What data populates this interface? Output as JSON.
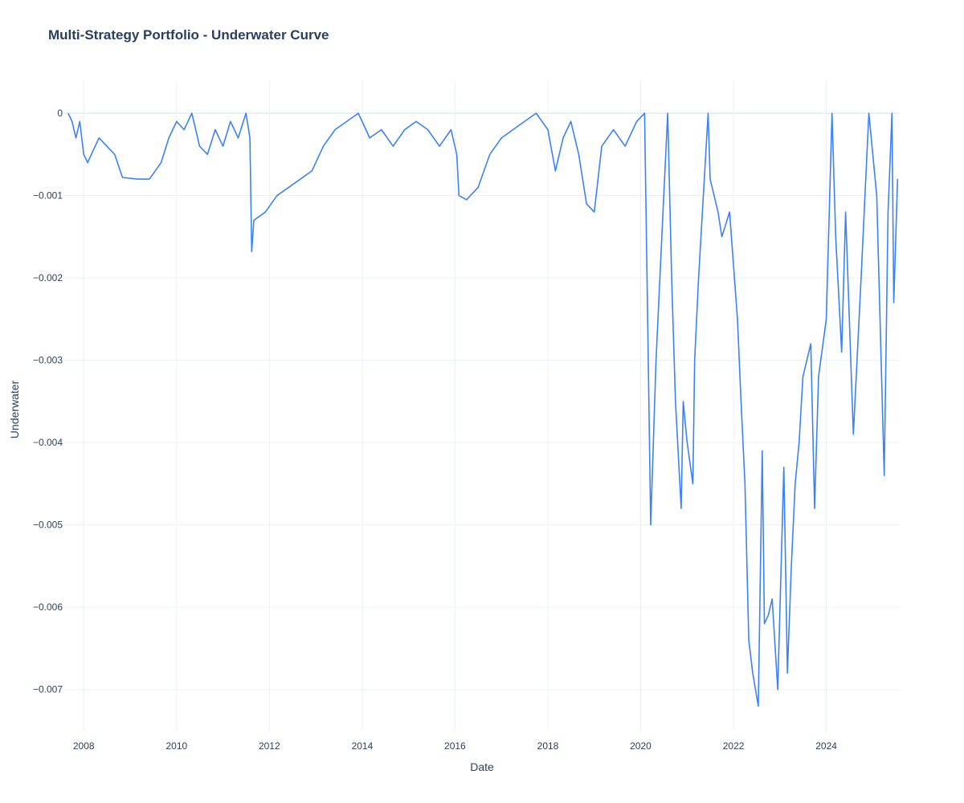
{
  "chart_data": {
    "type": "line",
    "title": "Multi-Strategy Portfolio - Underwater Curve",
    "xlabel": "Date",
    "ylabel": "Underwater",
    "grid": true,
    "xlim": [
      "2007-08-01",
      "2025-08-01"
    ],
    "ylim": [
      -0.0075,
      0.0004
    ],
    "x_ticks": [
      "2008",
      "2010",
      "2012",
      "2014",
      "2016",
      "2018",
      "2020",
      "2022",
      "2024"
    ],
    "y_ticks": [
      {
        "value": 0,
        "label": "0"
      },
      {
        "value": -0.001,
        "label": "−0.001"
      },
      {
        "value": -0.002,
        "label": "−0.002"
      },
      {
        "value": -0.003,
        "label": "−0.003"
      },
      {
        "value": -0.004,
        "label": "−0.004"
      },
      {
        "value": -0.005,
        "label": "−0.005"
      },
      {
        "value": -0.006,
        "label": "−0.006"
      },
      {
        "value": -0.007,
        "label": "−0.007"
      }
    ],
    "series": [
      {
        "color": "#3b82f6",
        "points": [
          [
            "2007-09-01",
            0
          ],
          [
            "2007-10-01",
            -0.0001
          ],
          [
            "2007-11-01",
            -0.0003
          ],
          [
            "2007-12-01",
            -0.0001
          ],
          [
            "2008-01-01",
            -0.0005
          ],
          [
            "2008-02-01",
            -0.0006
          ],
          [
            "2008-03-01",
            -0.0005
          ],
          [
            "2008-05-01",
            -0.0003
          ],
          [
            "2008-07-01",
            -0.0004
          ],
          [
            "2008-09-01",
            -0.0005
          ],
          [
            "2008-11-01",
            -0.00078
          ],
          [
            "2009-03-01",
            -0.0008
          ],
          [
            "2009-06-01",
            -0.0008
          ],
          [
            "2009-09-01",
            -0.0006
          ],
          [
            "2009-11-01",
            -0.0003
          ],
          [
            "2010-01-01",
            -0.0001
          ],
          [
            "2010-03-01",
            -0.0002
          ],
          [
            "2010-05-01",
            0
          ],
          [
            "2010-07-01",
            -0.0004
          ],
          [
            "2010-09-01",
            -0.0005
          ],
          [
            "2010-11-01",
            -0.0002
          ],
          [
            "2011-01-01",
            -0.0004
          ],
          [
            "2011-03-01",
            -0.0001
          ],
          [
            "2011-05-01",
            -0.0003
          ],
          [
            "2011-07-01",
            0
          ],
          [
            "2011-08-01",
            -0.0003
          ],
          [
            "2011-08-15",
            -0.00168
          ],
          [
            "2011-09-01",
            -0.0013
          ],
          [
            "2011-12-01",
            -0.0012
          ],
          [
            "2012-03-01",
            -0.001
          ],
          [
            "2012-06-01",
            -0.0009
          ],
          [
            "2012-09-01",
            -0.0008
          ],
          [
            "2012-12-01",
            -0.0007
          ],
          [
            "2013-03-01",
            -0.0004
          ],
          [
            "2013-06-01",
            -0.0002
          ],
          [
            "2013-09-01",
            -0.0001
          ],
          [
            "2013-12-01",
            0
          ],
          [
            "2014-03-01",
            -0.0003
          ],
          [
            "2014-06-01",
            -0.0002
          ],
          [
            "2014-09-01",
            -0.0004
          ],
          [
            "2014-12-01",
            -0.0002
          ],
          [
            "2015-03-01",
            -0.0001
          ],
          [
            "2015-06-01",
            -0.0002
          ],
          [
            "2015-09-01",
            -0.0004
          ],
          [
            "2015-12-01",
            -0.0002
          ],
          [
            "2016-01-15",
            -0.0005
          ],
          [
            "2016-02-01",
            -0.001
          ],
          [
            "2016-04-01",
            -0.00105
          ],
          [
            "2016-07-01",
            -0.0009
          ],
          [
            "2016-10-01",
            -0.0005
          ],
          [
            "2017-01-01",
            -0.0003
          ],
          [
            "2017-04-01",
            -0.0002
          ],
          [
            "2017-07-01",
            -0.0001
          ],
          [
            "2017-10-01",
            0
          ],
          [
            "2018-01-01",
            -0.0002
          ],
          [
            "2018-03-01",
            -0.0007
          ],
          [
            "2018-05-01",
            -0.0003
          ],
          [
            "2018-07-01",
            -0.0001
          ],
          [
            "2018-09-01",
            -0.0005
          ],
          [
            "2018-11-01",
            -0.0011
          ],
          [
            "2019-01-01",
            -0.0012
          ],
          [
            "2019-03-01",
            -0.0004
          ],
          [
            "2019-06-01",
            -0.0002
          ],
          [
            "2019-09-01",
            -0.0004
          ],
          [
            "2019-12-01",
            -0.0001
          ],
          [
            "2020-02-01",
            0
          ],
          [
            "2020-03-01",
            -0.003
          ],
          [
            "2020-03-20",
            -0.005
          ],
          [
            "2020-05-01",
            -0.003
          ],
          [
            "2020-07-01",
            -0.001
          ],
          [
            "2020-08-01",
            0
          ],
          [
            "2020-09-01",
            -0.002
          ],
          [
            "2020-10-01",
            -0.0035
          ],
          [
            "2020-11-15",
            -0.0048
          ],
          [
            "2020-12-01",
            -0.0035
          ],
          [
            "2021-01-01",
            -0.004
          ],
          [
            "2021-02-15",
            -0.0045
          ],
          [
            "2021-03-01",
            -0.003
          ],
          [
            "2021-04-01",
            -0.002
          ],
          [
            "2021-05-01",
            -0.0012
          ],
          [
            "2021-06-15",
            0
          ],
          [
            "2021-07-01",
            -0.0008
          ],
          [
            "2021-09-01",
            -0.0012
          ],
          [
            "2021-10-01",
            -0.0015
          ],
          [
            "2021-12-01",
            -0.0012
          ],
          [
            "2022-02-01",
            -0.0025
          ],
          [
            "2022-03-01",
            -0.0035
          ],
          [
            "2022-04-01",
            -0.0045
          ],
          [
            "2022-05-01",
            -0.0064
          ],
          [
            "2022-06-01",
            -0.0068
          ],
          [
            "2022-07-15",
            -0.0072
          ],
          [
            "2022-08-15",
            -0.0041
          ],
          [
            "2022-09-01",
            -0.0062
          ],
          [
            "2022-10-01",
            -0.0061
          ],
          [
            "2022-11-01",
            -0.0059
          ],
          [
            "2022-12-15",
            -0.007
          ],
          [
            "2023-02-01",
            -0.0043
          ],
          [
            "2023-03-01",
            -0.0068
          ],
          [
            "2023-04-01",
            -0.0055
          ],
          [
            "2023-05-01",
            -0.0045
          ],
          [
            "2023-06-01",
            -0.004
          ],
          [
            "2023-07-01",
            -0.0032
          ],
          [
            "2023-09-01",
            -0.0028
          ],
          [
            "2023-10-01",
            -0.0048
          ],
          [
            "2023-11-01",
            -0.0032
          ],
          [
            "2024-01-01",
            -0.0025
          ],
          [
            "2024-02-15",
            0
          ],
          [
            "2024-03-15",
            -0.0015
          ],
          [
            "2024-05-01",
            -0.0029
          ],
          [
            "2024-06-01",
            -0.0012
          ],
          [
            "2024-08-01",
            -0.0039
          ],
          [
            "2024-10-01",
            -0.002
          ],
          [
            "2024-12-01",
            0
          ],
          [
            "2025-02-01",
            -0.001
          ],
          [
            "2025-04-01",
            -0.0044
          ],
          [
            "2025-05-01",
            -0.0012
          ],
          [
            "2025-06-01",
            0
          ],
          [
            "2025-06-15",
            -0.0023
          ],
          [
            "2025-07-15",
            -0.0008
          ]
        ]
      }
    ]
  }
}
